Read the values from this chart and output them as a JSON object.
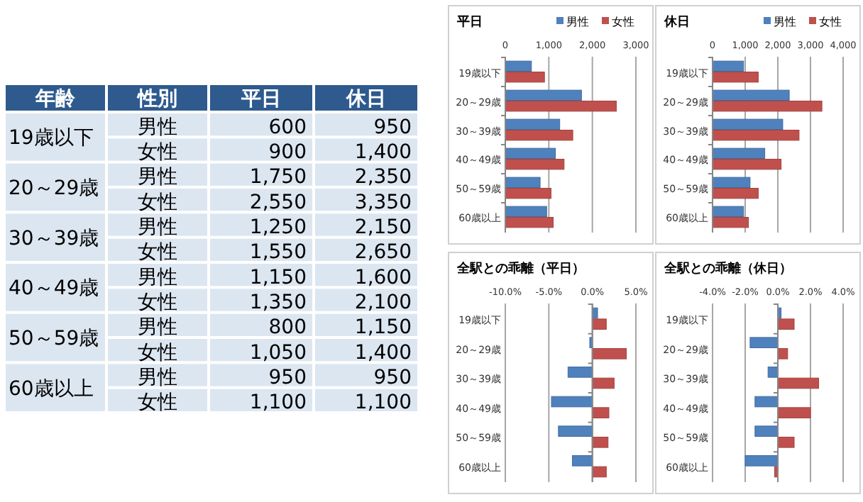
{
  "chart_data": [
    {
      "type": "other",
      "annotations": [
        "年齢",
        "性別",
        "19歳以下",
        "20～29歳",
        "30～39歳",
        "40～49歳",
        "50～59歳",
        "60歳以上"
      ],
      "categories": [
        "男性",
        "女性",
        "男性",
        "女性",
        "男性",
        "女性",
        "男性",
        "女性",
        "男性",
        "女性",
        "男性",
        "女性"
      ],
      "series": [
        {
          "name": "平日",
          "values": [
            600,
            900,
            1750,
            2550,
            1250,
            1550,
            1150,
            1350,
            800,
            1050,
            950,
            1100
          ],
          "value_labels": [
            "600",
            "900",
            "1,750",
            "2,550",
            "1,250",
            "1,550",
            "1,150",
            "1,350",
            "800",
            "1,050",
            "950",
            "1,100"
          ]
        },
        {
          "name": "休日",
          "values": [
            950,
            1400,
            2350,
            3350,
            2150,
            2650,
            1600,
            2100,
            1150,
            1400,
            950,
            1100
          ],
          "value_labels": [
            "950",
            "1,400",
            "2,350",
            "3,350",
            "2,150",
            "2,650",
            "1,600",
            "2,100",
            "1,150",
            "1,400",
            "950",
            "1,100"
          ]
        }
      ]
    },
    {
      "type": "bar",
      "orientation": "horizontal",
      "title": "平日",
      "categories": [
        "19歳以下",
        "20～29歳",
        "30～39歳",
        "40～49歳",
        "50～59歳",
        "60歳以上"
      ],
      "series": [
        {
          "name": "男性",
          "color": "#4f81bd",
          "values": [
            600,
            1750,
            1250,
            1150,
            800,
            950
          ]
        },
        {
          "name": "女性",
          "color": "#c0504d",
          "values": [
            900,
            2550,
            1550,
            1350,
            1050,
            1100
          ]
        }
      ],
      "xlim": [
        0,
        3000
      ],
      "xticks": [
        0,
        {
          "value": 1000,
          "label": "1,000"
        },
        {
          "value": 2000,
          "label": "2,000"
        },
        {
          "value": 3000,
          "label": "3,000"
        }
      ],
      "grid": "x",
      "legend": "top right"
    },
    {
      "type": "bar",
      "orientation": "horizontal",
      "title": "休日",
      "categories": [
        "19歳以下",
        "20～29歳",
        "30～39歳",
        "40～49歳",
        "50～59歳",
        "60歳以上"
      ],
      "series": [
        {
          "name": "男性",
          "color": "#4f81bd",
          "values": [
            950,
            2350,
            2150,
            1600,
            1150,
            950
          ]
        },
        {
          "name": "女性",
          "color": "#c0504d",
          "values": [
            1400,
            3350,
            2650,
            2100,
            1400,
            1100
          ]
        }
      ],
      "xlim": [
        0,
        4000
      ],
      "xticks": [
        0,
        {
          "value": 1000,
          "label": "1,000"
        },
        {
          "value": 2000,
          "label": "2,000"
        },
        {
          "value": 3000,
          "label": "3,000"
        },
        {
          "value": 4000,
          "label": "4,000"
        }
      ],
      "grid": "x",
      "legend": "top right"
    },
    {
      "type": "bar",
      "orientation": "horizontal",
      "title": "全駅との乖離（平日）",
      "categories": [
        "19歳以下",
        "20～29歳",
        "30～39歳",
        "40～49歳",
        "50～59歳",
        "60歳以上"
      ],
      "series": [
        {
          "color": "#4f81bd",
          "values": [
            0.6,
            -0.3,
            -2.8,
            -4.7,
            -3.9,
            -2.3
          ]
        },
        {
          "color": "#c0504d",
          "values": [
            1.6,
            3.9,
            2.5,
            1.9,
            1.8,
            1.6
          ]
        }
      ],
      "xlim": [
        -10,
        5
      ],
      "xticks": [
        {
          "value": -10,
          "label": "-10.0%"
        },
        {
          "value": -5,
          "label": "-5.0%"
        },
        {
          "value": 0,
          "label": "0.0%"
        },
        {
          "value": 5,
          "label": "5.0%"
        }
      ],
      "grid": "x"
    },
    {
      "type": "bar",
      "orientation": "horizontal",
      "title": "全駅との乖離（休日）",
      "categories": [
        "19歳以下",
        "20～29歳",
        "30～39歳",
        "40～49歳",
        "50～59歳",
        "60歳以上"
      ],
      "series": [
        {
          "color": "#4f81bd",
          "values": [
            0.2,
            -1.7,
            -0.6,
            -1.4,
            -1.4,
            -2.0
          ]
        },
        {
          "color": "#c0504d",
          "values": [
            1.0,
            0.6,
            2.5,
            2.0,
            1.0,
            -0.2
          ]
        }
      ],
      "xlim": [
        -4,
        4
      ],
      "xticks": [
        {
          "value": -4,
          "label": "-4.0%"
        },
        {
          "value": -2,
          "label": "-2.0%"
        },
        {
          "value": 0,
          "label": "0.0%"
        },
        {
          "value": 2,
          "label": "2.0%"
        },
        {
          "value": 4,
          "label": "4.0%"
        }
      ],
      "grid": "x"
    }
  ]
}
